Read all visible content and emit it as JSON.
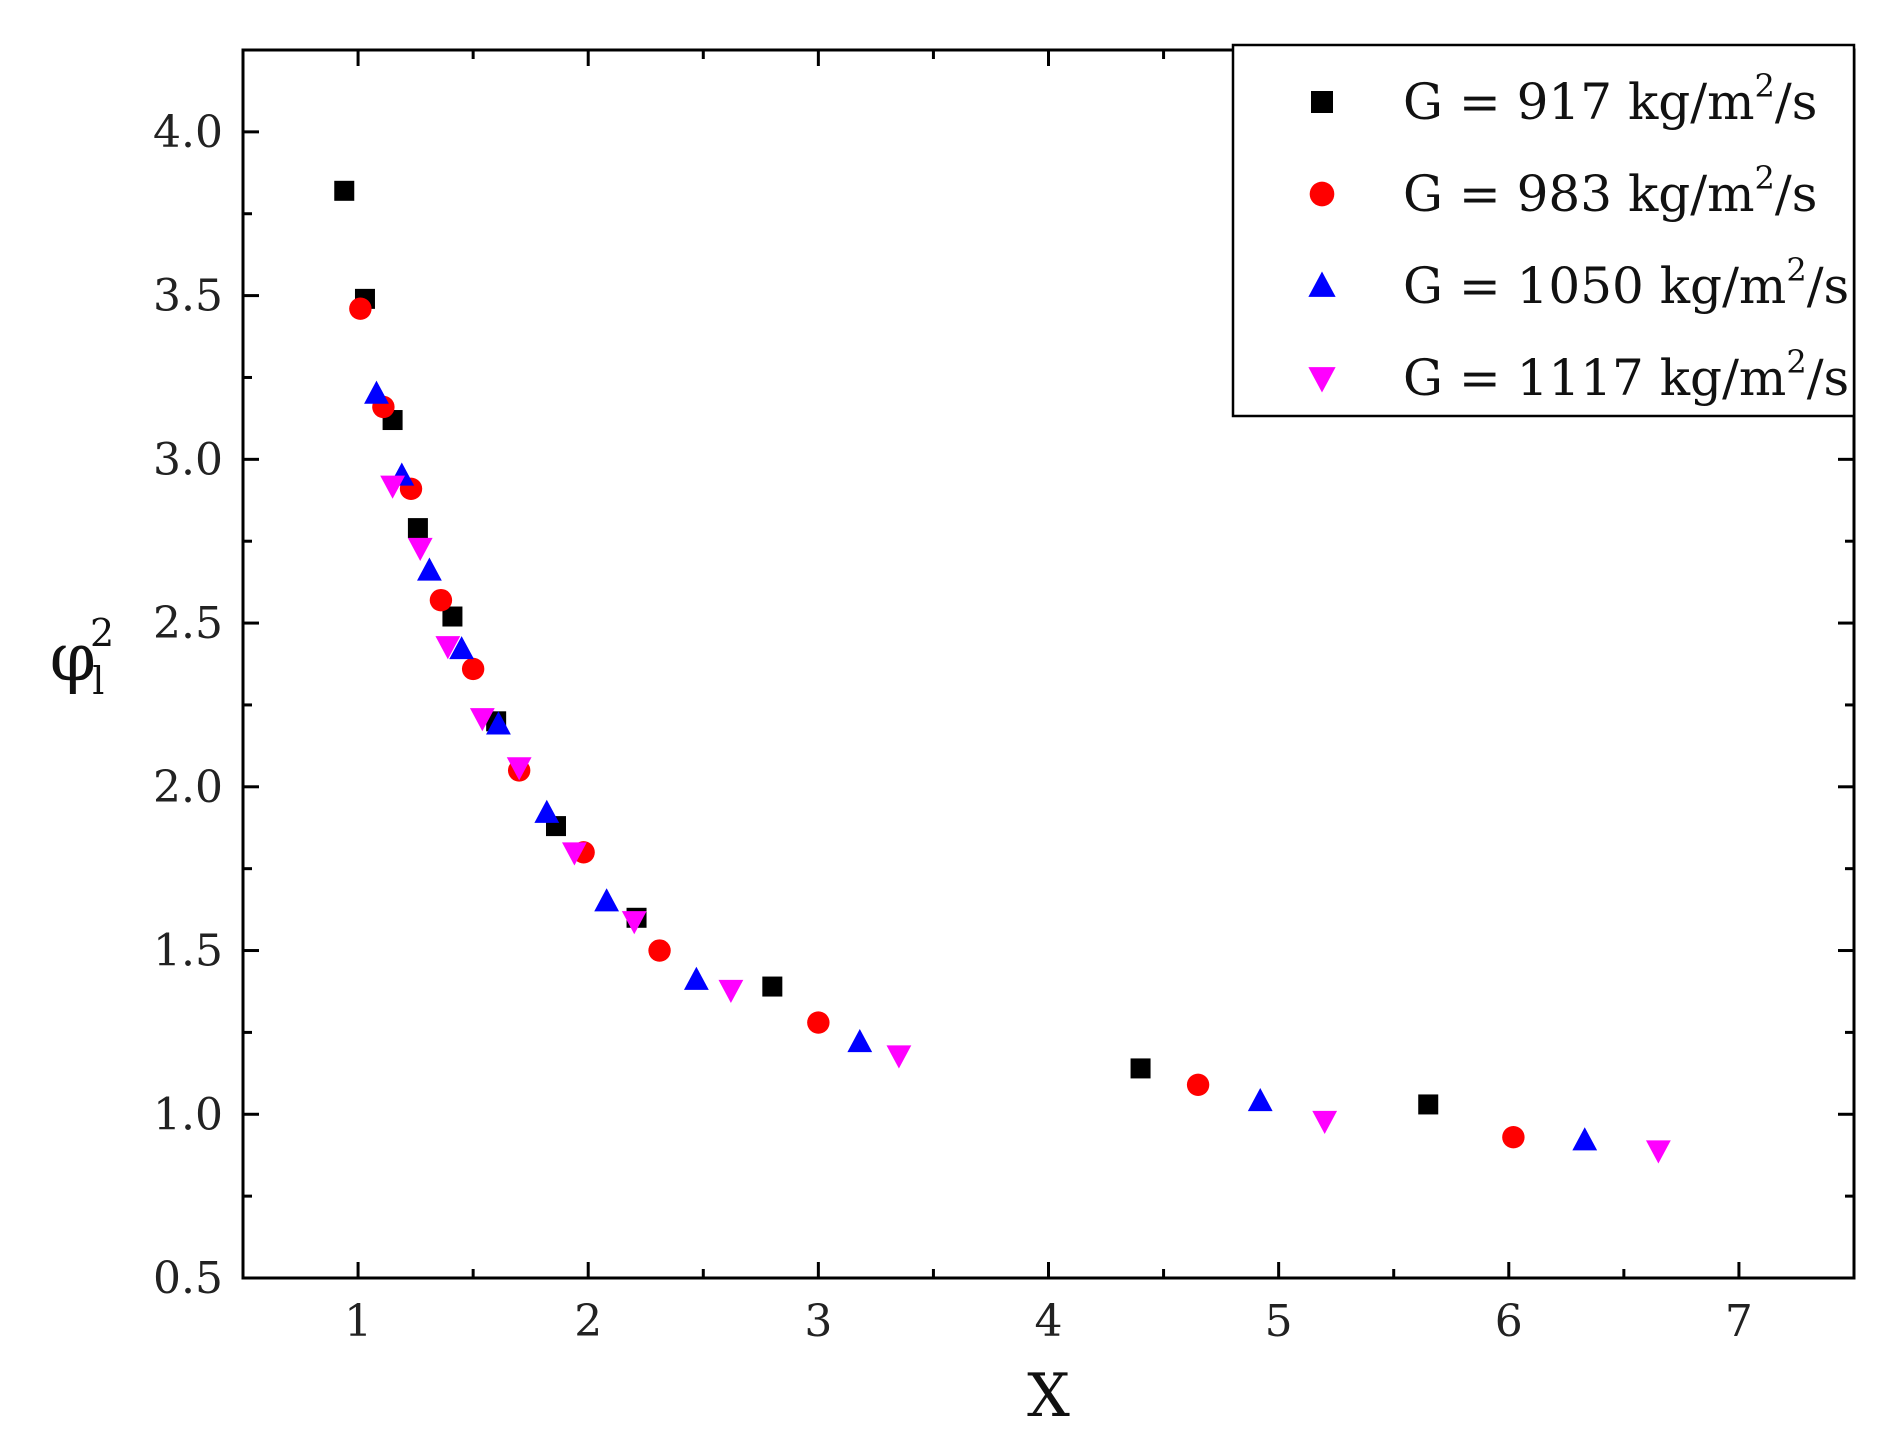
{
  "chart_data": {
    "type": "scatter",
    "title": "",
    "xlabel": "X",
    "ylabel": {
      "base": "φ",
      "sup": "2",
      "sub": "l"
    },
    "xlim": [
      0.5,
      7.5
    ],
    "ylim": [
      0.5,
      4.25
    ],
    "xticks": [
      1,
      2,
      3,
      4,
      5,
      6,
      7
    ],
    "xtick_labels": [
      "1",
      "2",
      "3",
      "4",
      "5",
      "6",
      "7"
    ],
    "yticks": [
      0.5,
      1.0,
      1.5,
      2.0,
      2.5,
      3.0,
      3.5,
      4.0
    ],
    "ytick_labels": [
      "0.5",
      "1.0",
      "1.5",
      "2.0",
      "2.5",
      "3.0",
      "3.5",
      "4.0"
    ],
    "legend_position": "top-right",
    "series": [
      {
        "name": "G = 917 kg/m²/s",
        "label_parts": {
          "pre": "G = 917 kg/m",
          "sup": "2",
          "post": "/s"
        },
        "marker": "square",
        "color": "#000000",
        "x": [
          0.94,
          1.03,
          1.15,
          1.26,
          1.41,
          1.6,
          1.86,
          2.21,
          2.8,
          4.4,
          5.65
        ],
        "y": [
          3.82,
          3.49,
          3.12,
          2.79,
          2.52,
          2.2,
          1.88,
          1.6,
          1.39,
          1.14,
          1.03
        ]
      },
      {
        "name": "G = 983 kg/m²/s",
        "label_parts": {
          "pre": "G = 983 kg/m",
          "sup": "2",
          "post": "/s"
        },
        "marker": "circle",
        "color": "#ff0000",
        "x": [
          1.01,
          1.11,
          1.23,
          1.36,
          1.5,
          1.7,
          1.98,
          2.31,
          3.0,
          4.65,
          6.02
        ],
        "y": [
          3.46,
          3.16,
          2.91,
          2.57,
          2.36,
          2.05,
          1.8,
          1.5,
          1.28,
          1.09,
          0.93
        ]
      },
      {
        "name": "G = 1050 kg/m²/s",
        "label_parts": {
          "pre": "G = 1050 kg/m",
          "sup": "2",
          "post": "/s"
        },
        "marker": "triangle-up",
        "color": "#0000ff",
        "x": [
          1.08,
          1.19,
          1.31,
          1.45,
          1.61,
          1.82,
          2.08,
          2.47,
          3.18,
          4.92,
          6.33
        ],
        "y": [
          3.2,
          2.95,
          2.66,
          2.42,
          2.19,
          1.92,
          1.65,
          1.41,
          1.22,
          1.04,
          0.92
        ]
      },
      {
        "name": "G = 1117 kg/m²/s",
        "label_parts": {
          "pre": "G = 1117 kg/m",
          "sup": "2",
          "post": "/s"
        },
        "marker": "triangle-down",
        "color": "#ff00ff",
        "x": [
          1.15,
          1.27,
          1.39,
          1.54,
          1.7,
          1.94,
          2.2,
          2.62,
          3.35,
          5.2,
          6.65
        ],
        "y": [
          2.92,
          2.73,
          2.43,
          2.21,
          2.06,
          1.8,
          1.59,
          1.38,
          1.18,
          0.98,
          0.89
        ]
      }
    ]
  }
}
